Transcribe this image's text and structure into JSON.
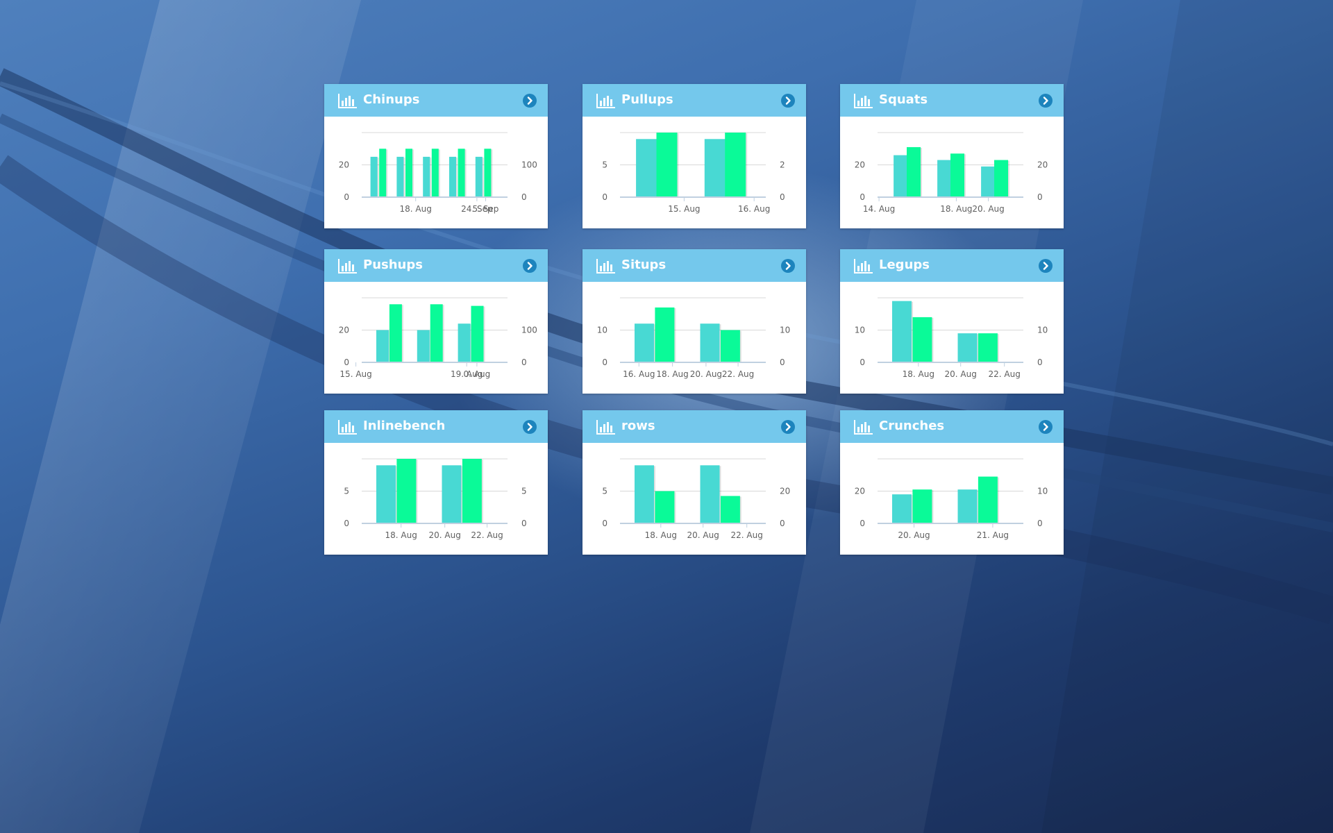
{
  "colors": {
    "header": "#74c8ec",
    "series_a": "#48d9d3",
    "series_b": "#0afa98",
    "axis_text": "#5f5f5f",
    "grid": "#d8d8d8",
    "arrow": "#1d84bd"
  },
  "icons": {
    "chart": "bar-chart-icon",
    "open": "circle-arrow-right-icon"
  },
  "widgets": [
    {
      "title": "Chinups",
      "chart_data": {
        "type": "bar",
        "left_ticks": [
          {
            "v": 0,
            "label": "0"
          },
          {
            "v": 20,
            "label": "20"
          }
        ],
        "left_max": 40,
        "right_ticks": [
          {
            "v": 0,
            "label": "0"
          },
          {
            "v": 100,
            "label": "100"
          }
        ],
        "right_max": 200,
        "bar_width": 10,
        "series": [
          {
            "axis": "left",
            "x": [
              0.06,
              0.24,
              0.42,
              0.6,
              0.78
            ],
            "values": [
              25,
              25,
              25,
              25,
              25
            ]
          },
          {
            "axis": "right",
            "x": [
              0.12,
              0.3,
              0.48,
              0.66,
              0.84
            ],
            "values": [
              150,
              150,
              150,
              150,
              150
            ]
          }
        ],
        "x_ticks": [
          {
            "x": 0.37,
            "label": "18. Aug"
          },
          {
            "x": 0.79,
            "label": "24. Sep"
          },
          {
            "x": 0.85,
            "label": "5. Sep"
          }
        ]
      }
    },
    {
      "title": "Pullups",
      "chart_data": {
        "type": "bar",
        "left_ticks": [
          {
            "v": 0,
            "label": "0"
          },
          {
            "v": 5,
            "label": "5"
          }
        ],
        "left_max": 10,
        "right_ticks": [
          {
            "v": 0,
            "label": "0"
          },
          {
            "v": 2,
            "label": "2"
          }
        ],
        "right_max": 4,
        "bar_width": 30,
        "series": [
          {
            "axis": "left",
            "x": [
              0.11,
              0.58
            ],
            "values": [
              9,
              9
            ]
          },
          {
            "axis": "right",
            "x": [
              0.25,
              0.72
            ],
            "values": [
              4,
              4
            ]
          }
        ],
        "x_ticks": [
          {
            "x": 0.44,
            "label": "15. Aug"
          },
          {
            "x": 0.92,
            "label": "16. Aug"
          }
        ]
      }
    },
    {
      "title": "Squats",
      "chart_data": {
        "type": "bar",
        "left_ticks": [
          {
            "v": 0,
            "label": "0"
          },
          {
            "v": 20,
            "label": "20"
          }
        ],
        "left_max": 40,
        "right_ticks": [
          {
            "v": 0,
            "label": "0"
          },
          {
            "v": 20,
            "label": "20"
          }
        ],
        "right_max": 40,
        "bar_width": 20,
        "series": [
          {
            "axis": "left",
            "x": [
              0.11,
              0.41,
              0.71
            ],
            "values": [
              26,
              23,
              19
            ]
          },
          {
            "axis": "right",
            "x": [
              0.2,
              0.5,
              0.8
            ],
            "values": [
              31,
              27,
              23
            ]
          }
        ],
        "x_ticks": [
          {
            "x": 0.01,
            "label": "14. Aug"
          },
          {
            "x": 0.54,
            "label": "18. Aug"
          },
          {
            "x": 0.76,
            "label": "20. Aug"
          }
        ]
      }
    },
    {
      "title": "Pushups",
      "chart_data": {
        "type": "bar",
        "left_ticks": [
          {
            "v": 0,
            "label": "0"
          },
          {
            "v": 20,
            "label": "20"
          }
        ],
        "left_max": 40,
        "right_ticks": [
          {
            "v": 0,
            "label": "0"
          },
          {
            "v": 100,
            "label": "100"
          }
        ],
        "right_max": 200,
        "bar_width": 18,
        "series": [
          {
            "axis": "left",
            "x": [
              0.1,
              0.38,
              0.66
            ],
            "values": [
              20,
              20,
              24
            ]
          },
          {
            "axis": "right",
            "x": [
              0.19,
              0.47,
              0.75
            ],
            "values": [
              180,
              180,
              175
            ]
          }
        ],
        "x_ticks": [
          {
            "x": -0.04,
            "label": "15. Aug"
          },
          {
            "x": 0.72,
            "label": "19. Aug"
          },
          {
            "x": 0.79,
            "label": "0. Aug"
          }
        ]
      }
    },
    {
      "title": "Situps",
      "chart_data": {
        "type": "bar",
        "left_ticks": [
          {
            "v": 0,
            "label": "0"
          },
          {
            "v": 10,
            "label": "10"
          }
        ],
        "left_max": 20,
        "right_ticks": [
          {
            "v": 0,
            "label": "0"
          },
          {
            "v": 10,
            "label": "10"
          }
        ],
        "right_max": 20,
        "bar_width": 28,
        "series": [
          {
            "axis": "left",
            "x": [
              0.1,
              0.55
            ],
            "values": [
              12,
              12
            ]
          },
          {
            "axis": "right",
            "x": [
              0.24,
              0.69
            ],
            "values": [
              17,
              10
            ]
          }
        ],
        "x_ticks": [
          {
            "x": 0.13,
            "label": "16. Aug"
          },
          {
            "x": 0.36,
            "label": "18. Aug"
          },
          {
            "x": 0.59,
            "label": "20. Aug"
          },
          {
            "x": 0.81,
            "label": "22. Aug"
          }
        ]
      }
    },
    {
      "title": "Legups",
      "chart_data": {
        "type": "bar",
        "left_ticks": [
          {
            "v": 0,
            "label": "0"
          },
          {
            "v": 10,
            "label": "10"
          }
        ],
        "left_max": 20,
        "right_ticks": [
          {
            "v": 0,
            "label": "0"
          },
          {
            "v": 10,
            "label": "10"
          }
        ],
        "right_max": 20,
        "bar_width": 28,
        "series": [
          {
            "axis": "left",
            "x": [
              0.1,
              0.55
            ],
            "values": [
              19,
              9
            ]
          },
          {
            "axis": "right",
            "x": [
              0.24,
              0.69
            ],
            "values": [
              14,
              9
            ]
          }
        ],
        "x_ticks": [
          {
            "x": 0.28,
            "label": "18. Aug"
          },
          {
            "x": 0.57,
            "label": "20. Aug"
          },
          {
            "x": 0.87,
            "label": "22. Aug"
          }
        ]
      }
    },
    {
      "title": "Inlinebench",
      "chart_data": {
        "type": "bar",
        "left_ticks": [
          {
            "v": 0,
            "label": "0"
          },
          {
            "v": 5,
            "label": "5"
          }
        ],
        "left_max": 10,
        "right_ticks": [
          {
            "v": 0,
            "label": "0"
          },
          {
            "v": 5,
            "label": "5"
          }
        ],
        "right_max": 10,
        "bar_width": 28,
        "series": [
          {
            "axis": "left",
            "x": [
              0.1,
              0.55
            ],
            "values": [
              9,
              9
            ]
          },
          {
            "axis": "right",
            "x": [
              0.24,
              0.69
            ],
            "values": [
              10,
              10
            ]
          }
        ],
        "x_ticks": [
          {
            "x": 0.27,
            "label": "18. Aug"
          },
          {
            "x": 0.57,
            "label": "20. Aug"
          },
          {
            "x": 0.86,
            "label": "22. Aug"
          }
        ]
      }
    },
    {
      "title": "rows",
      "chart_data": {
        "type": "bar",
        "left_ticks": [
          {
            "v": 0,
            "label": "0"
          },
          {
            "v": 5,
            "label": "5"
          }
        ],
        "left_max": 10,
        "right_ticks": [
          {
            "v": 0,
            "label": "0"
          },
          {
            "v": 20,
            "label": "20"
          }
        ],
        "right_max": 40,
        "bar_width": 28,
        "series": [
          {
            "axis": "left",
            "x": [
              0.1,
              0.55
            ],
            "values": [
              9,
              9
            ]
          },
          {
            "axis": "right",
            "x": [
              0.24,
              0.69
            ],
            "values": [
              20,
              17
            ]
          }
        ],
        "x_ticks": [
          {
            "x": 0.28,
            "label": "18. Aug"
          },
          {
            "x": 0.57,
            "label": "20. Aug"
          },
          {
            "x": 0.87,
            "label": "22. Aug"
          }
        ]
      }
    },
    {
      "title": "Crunches",
      "chart_data": {
        "type": "bar",
        "left_ticks": [
          {
            "v": 0,
            "label": "0"
          },
          {
            "v": 20,
            "label": "20"
          }
        ],
        "left_max": 40,
        "right_ticks": [
          {
            "v": 0,
            "label": "0"
          },
          {
            "v": 10,
            "label": "10"
          }
        ],
        "right_max": 20,
        "bar_width": 28,
        "series": [
          {
            "axis": "left",
            "x": [
              0.1,
              0.55
            ],
            "values": [
              18,
              21
            ]
          },
          {
            "axis": "right",
            "x": [
              0.24,
              0.69
            ],
            "values": [
              10.5,
              14.5
            ]
          }
        ],
        "x_ticks": [
          {
            "x": 0.25,
            "label": "20. Aug"
          },
          {
            "x": 0.79,
            "label": "21. Aug"
          }
        ]
      }
    }
  ]
}
